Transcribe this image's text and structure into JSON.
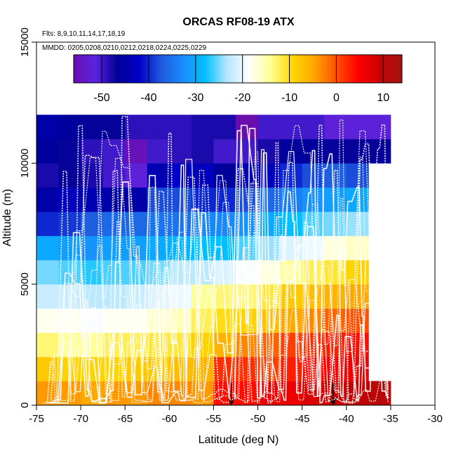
{
  "chart_data": {
    "type": "heatmap",
    "title": "ORCAS RF08-19 ATX",
    "flights_note": "Flts: 8,9,10,11,14,17,18,19",
    "dates_note": "MMDD: 0205,0208,0210,0212,0218,0224,0225,0229",
    "xlabel": "Latitude (deg N)",
    "ylabel": "Altitude (m)",
    "xlim": [
      -75,
      -30
    ],
    "ylim": [
      0,
      15000
    ],
    "x_ticks": [
      -75,
      -70,
      -65,
      -60,
      -55,
      -50,
      -45,
      -40,
      -35,
      -30
    ],
    "y_ticks": [
      0,
      5000,
      10000,
      15000
    ],
    "colorbar": {
      "range": [
        -56,
        14
      ],
      "ticks": [
        -50,
        -40,
        -30,
        -20,
        -10,
        0,
        10
      ],
      "stops": [
        "#6a0dad",
        "#5a24e0",
        "#000096",
        "#0000c8",
        "#1e5adc",
        "#1a8cff",
        "#00bfff",
        "#b4e6ff",
        "#ffffff",
        "#ffff96",
        "#ffd700",
        "#ffa500",
        "#ff5000",
        "#ff0000",
        "#c80000",
        "#a01414"
      ]
    },
    "cell_size": {
      "lat": 2.5,
      "alt": 1000
    },
    "lat_starts": [
      -75,
      -72.5,
      -70,
      -67.5,
      -65,
      -62.5,
      -60,
      -57.5,
      -55,
      -52.5,
      -50,
      -47.5,
      -45,
      -42.5,
      -40,
      -37.5
    ],
    "alt_starts": [
      0,
      1000,
      2000,
      3000,
      4000,
      5000,
      6000,
      7000,
      8000,
      9000,
      10000,
      11000
    ],
    "grid_values": [
      [
        -4,
        -4,
        -5,
        -4,
        -4,
        -3,
        -3,
        -4,
        4,
        4,
        6,
        6,
        8,
        9,
        10,
        11
      ],
      [
        -8,
        -9,
        -9,
        -9,
        -8,
        -8,
        -7,
        -6,
        2,
        2,
        1,
        3,
        4,
        5,
        6,
        null
      ],
      [
        -13,
        -14,
        -14,
        -12,
        -12,
        -11,
        -11,
        -9,
        -6,
        -3,
        -1,
        1,
        2,
        3,
        4,
        null
      ],
      [
        -18,
        -18,
        -19,
        -18,
        -18,
        -16,
        -15,
        -12,
        -10,
        -9,
        -7,
        -5,
        -3,
        -1,
        0,
        null
      ],
      [
        -22,
        -22,
        -23,
        -23,
        -22,
        -21,
        -20,
        -14,
        -13,
        -13,
        -11,
        -8,
        -7,
        -6,
        -5,
        null
      ],
      [
        -25,
        -26,
        -27,
        -26,
        -26,
        -25,
        -23,
        -23,
        -21,
        -19,
        -17,
        -14,
        -12,
        -11,
        -9,
        null
      ],
      [
        -30,
        -31,
        -32,
        -31,
        -31,
        -30,
        -29,
        -28,
        -28,
        -26,
        -24,
        -21,
        -20,
        -17,
        -16,
        null
      ],
      [
        -40,
        -39,
        -37,
        -36,
        -36,
        -35,
        -35,
        -33,
        -33,
        -32,
        -30,
        -28,
        -26,
        -25,
        -24,
        null
      ],
      [
        -45,
        -43,
        -44,
        -45,
        -45,
        -38,
        -38,
        -40,
        -40,
        -38,
        -36,
        -34,
        -32,
        -31,
        -30,
        null
      ],
      [
        -48,
        -47,
        -48,
        -50,
        -52,
        -44,
        -42,
        -43,
        -46,
        -44,
        -43,
        -40,
        -38,
        -37,
        -38,
        null
      ],
      [
        -46,
        -47,
        -49,
        -50,
        -55,
        -50,
        -49,
        -48,
        -50,
        -50,
        -48,
        -46,
        -46,
        -47,
        -47,
        -47
      ],
      [
        -45,
        -46,
        -47,
        -47,
        -49,
        -49,
        -49,
        -48,
        -48,
        -56,
        -50,
        -50,
        -50,
        -52,
        -52,
        -52
      ]
    ],
    "markers": [
      {
        "lat": -53,
        "label": "arrow"
      },
      {
        "lat": -41.5,
        "label": "arrow"
      }
    ]
  }
}
